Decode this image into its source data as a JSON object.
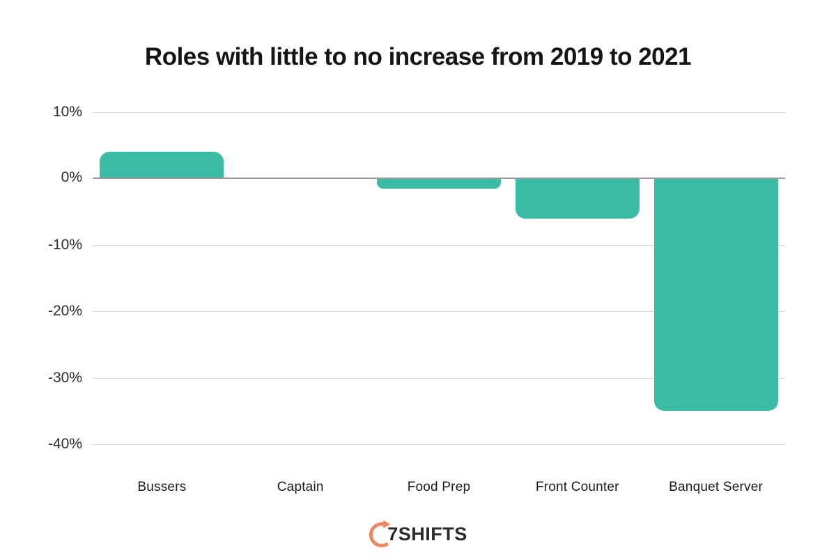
{
  "title": "Roles with little to no increase from 2019 to 2021",
  "chart_data": {
    "type": "bar",
    "categories": [
      "Bussers",
      "Captain",
      "Food Prep",
      "Front Counter",
      "Banquet Server"
    ],
    "values": [
      4,
      0,
      -1.5,
      -6,
      -35
    ],
    "unit": "%",
    "title": "Roles with little to no increase from 2019 to 2021",
    "xlabel": "",
    "ylabel": "",
    "ylim": [
      -40,
      10
    ],
    "y_ticks": [
      "10%",
      "0%",
      "-10%",
      "-20%",
      "-30%",
      "-40%"
    ],
    "y_tick_values": [
      10,
      0,
      -10,
      -20,
      -30,
      -40
    ],
    "grid": true,
    "legend": false,
    "bar_color": "#3cbca4"
  },
  "colors": {
    "bar": "#3cbca4",
    "zero_line": "#9a9a9a",
    "gridline": "#d9d9d9",
    "title_text": "#151515",
    "logo_accent": "#f0875f",
    "logo_text": "#2b2b2b"
  },
  "footer": {
    "logo_text": "7SHIFTS"
  }
}
